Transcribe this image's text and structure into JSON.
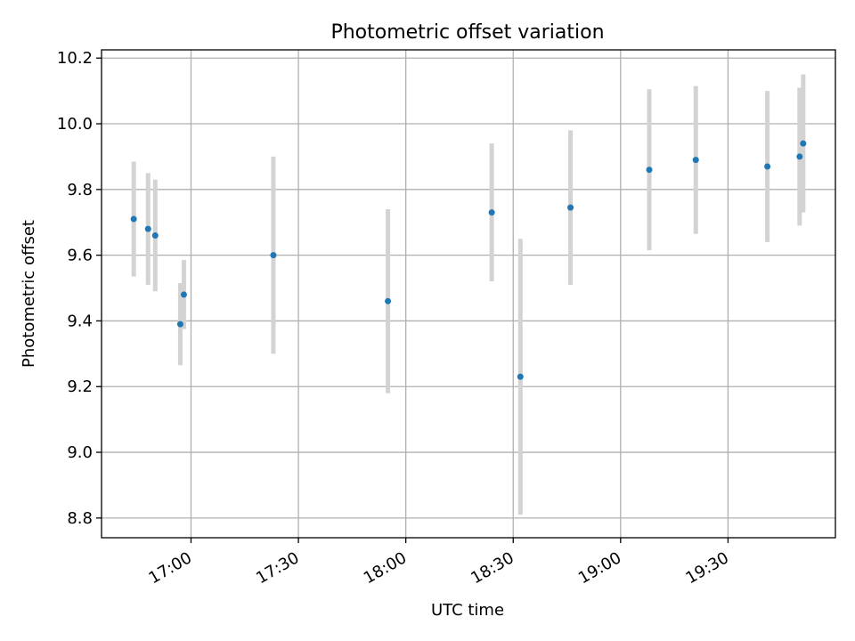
{
  "chart_data": {
    "type": "scatter",
    "title": "Photometric offset variation",
    "xlabel": "UTC time",
    "ylabel": "Photometric offset",
    "x_axis_type": "time",
    "xlim": [
      "16:35",
      "20:00"
    ],
    "ylim": [
      8.74,
      10.225
    ],
    "x_ticks": [
      "17:00",
      "17:30",
      "18:00",
      "18:30",
      "19:00",
      "19:30"
    ],
    "y_ticks": [
      "8.8",
      "9.0",
      "9.2",
      "9.4",
      "9.6",
      "9.8",
      "10.0",
      "10.2"
    ],
    "grid": true,
    "legend": "none",
    "colors": {
      "points": "#1f77b4",
      "error_bars": "#d3d3d3",
      "grid": "#b0b0b0"
    },
    "points": [
      {
        "x": "16:44",
        "y": 9.71,
        "err": 0.175
      },
      {
        "x": "16:48",
        "y": 9.68,
        "err": 0.17
      },
      {
        "x": "16:50",
        "y": 9.66,
        "err": 0.17
      },
      {
        "x": "16:57",
        "y": 9.39,
        "err": 0.125
      },
      {
        "x": "16:58",
        "y": 9.48,
        "err": 0.105
      },
      {
        "x": "17:23",
        "y": 9.6,
        "err": 0.3
      },
      {
        "x": "17:55",
        "y": 9.46,
        "err": 0.28
      },
      {
        "x": "18:24",
        "y": 9.73,
        "err": 0.21
      },
      {
        "x": "18:32",
        "y": 9.23,
        "err": 0.42
      },
      {
        "x": "18:46",
        "y": 9.745,
        "err": 0.235
      },
      {
        "x": "19:08",
        "y": 9.86,
        "err": 0.245
      },
      {
        "x": "19:21",
        "y": 9.89,
        "err": 0.225
      },
      {
        "x": "19:41",
        "y": 9.87,
        "err": 0.23
      },
      {
        "x": "19:50",
        "y": 9.9,
        "err": 0.21
      },
      {
        "x": "19:51",
        "y": 9.94,
        "err": 0.21
      }
    ]
  }
}
